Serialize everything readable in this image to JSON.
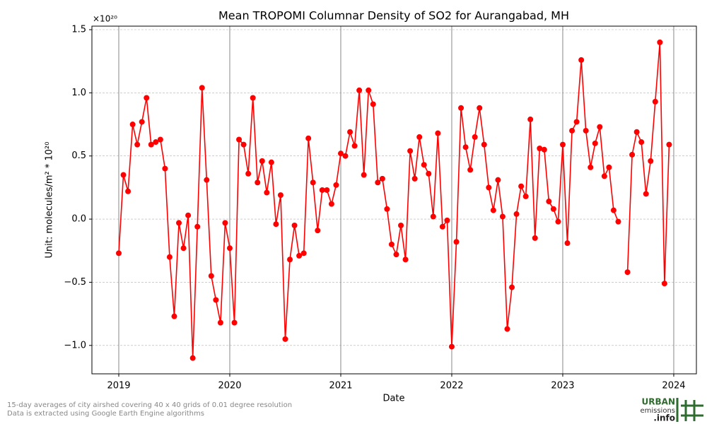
{
  "chart_data": {
    "type": "line",
    "title": "Mean TROPOMI Columnar Density of SO2 for Aurangabad, MH",
    "y_offset_label": "×10²⁰",
    "ylabel": "Unit: molecules/m² * 10²⁰",
    "xlabel": "Date",
    "footnote": [
      "15-day averages of city airshed covering 40 x 40 grids of 0.01 degree resolution",
      "Data is extracted using Google Earth Engine algorithms"
    ],
    "logo": [
      "URBAN",
      "emissions",
      ".info"
    ],
    "color": "#ff0000",
    "grid": true,
    "xlim": [
      2018.758,
      2024.204
    ],
    "xticks": [
      2019,
      2020,
      2021,
      2022,
      2023,
      2024
    ],
    "ylim": [
      -1.225,
      1.528
    ],
    "yticks": [
      {
        "value": -1.0,
        "label": "−1.0"
      },
      {
        "value": -0.5,
        "label": "−0.5"
      },
      {
        "value": 0,
        "label": "0.0"
      },
      {
        "value": 0.5,
        "label": "0.5"
      },
      {
        "value": 1.0,
        "label": "1.0"
      },
      {
        "value": 1.5,
        "label": "1.5"
      }
    ],
    "x": [
      2019,
      2019.0417,
      2019.0833,
      2019.125,
      2019.1667,
      2019.2083,
      2019.25,
      2019.2917,
      2019.3333,
      2019.375,
      2019.4167,
      2019.4583,
      2019.5,
      2019.5417,
      2019.5833,
      2019.625,
      2019.6667,
      2019.7083,
      2019.75,
      2019.7917,
      2019.8333,
      2019.875,
      2019.9167,
      2019.9583,
      2020,
      2020.0417,
      2020.0833,
      2020.125,
      2020.1667,
      2020.2083,
      2020.25,
      2020.2917,
      2020.3333,
      2020.375,
      2020.4167,
      2020.4583,
      2020.5,
      2020.5417,
      2020.5833,
      2020.625,
      2020.6667,
      2020.7083,
      2020.75,
      2020.7917,
      2020.8333,
      2020.875,
      2020.9167,
      2020.9583,
      2021,
      2021.0417,
      2021.0833,
      2021.125,
      2021.1667,
      2021.2083,
      2021.25,
      2021.2917,
      2021.3333,
      2021.375,
      2021.4167,
      2021.4583,
      2021.5,
      2021.5417,
      2021.5833,
      2021.625,
      2021.6667,
      2021.7083,
      2021.75,
      2021.7917,
      2021.8333,
      2021.875,
      2021.9167,
      2021.9583,
      2022,
      2022.0417,
      2022.0833,
      2022.125,
      2022.1667,
      2022.2083,
      2022.25,
      2022.2917,
      2022.3333,
      2022.375,
      2022.4167,
      2022.4583,
      2022.5,
      2022.5417,
      2022.5833,
      2022.625,
      2022.6667,
      2022.7083,
      2022.75,
      2022.7917,
      2022.8333,
      2022.875,
      2022.9167,
      2022.9583,
      2023,
      2023.0417,
      2023.0833,
      2023.125,
      2023.1667,
      2023.2083,
      2023.25,
      2023.2917,
      2023.3333,
      2023.375,
      2023.4167,
      2023.4583,
      2023.5,
      2023.5417,
      2023.5833,
      2023.625,
      2023.6667,
      2023.7083,
      2023.75,
      2023.7917,
      2023.8333,
      2023.875,
      2023.9167,
      2023.9583
    ],
    "values": [
      -0.27,
      0.35,
      0.22,
      0.75,
      0.59,
      0.77,
      0.96,
      0.59,
      0.61,
      0.63,
      0.4,
      -0.3,
      -0.77,
      -0.03,
      -0.23,
      0.03,
      -1.1,
      -0.06,
      1.04,
      0.31,
      -0.45,
      -0.64,
      -0.82,
      -0.03,
      -0.23,
      -0.82,
      0.63,
      0.59,
      0.36,
      0.96,
      0.29,
      0.46,
      0.21,
      0.45,
      -0.04,
      0.19,
      -0.95,
      -0.32,
      -0.05,
      -0.29,
      -0.27,
      0.64,
      0.29,
      -0.09,
      0.23,
      0.23,
      0.12,
      0.27,
      0.52,
      0.5,
      0.69,
      0.58,
      1.02,
      0.35,
      1.02,
      0.91,
      0.29,
      0.32,
      0.08,
      -0.2,
      -0.28,
      -0.05,
      -0.32,
      0.54,
      0.32,
      0.65,
      0.43,
      0.36,
      0.02,
      0.68,
      -0.06,
      -0.01,
      -1.01,
      -0.18,
      0.88,
      0.57,
      0.39,
      0.65,
      0.88,
      0.59,
      0.25,
      0.07,
      0.31,
      0.02,
      -0.87,
      -0.54,
      0.04,
      0.26,
      0.18,
      0.79,
      -0.15,
      0.56,
      0.55,
      0.14,
      0.08,
      -0.02,
      0.59,
      -0.19,
      0.7,
      0.77,
      1.26,
      0.7,
      0.41,
      0.6,
      0.73,
      0.34,
      0.41,
      0.07,
      -0.02,
      null,
      -0.42,
      0.51,
      0.69,
      0.61,
      0.2,
      0.46,
      0.93,
      1.4,
      -0.51,
      0.59
    ]
  }
}
